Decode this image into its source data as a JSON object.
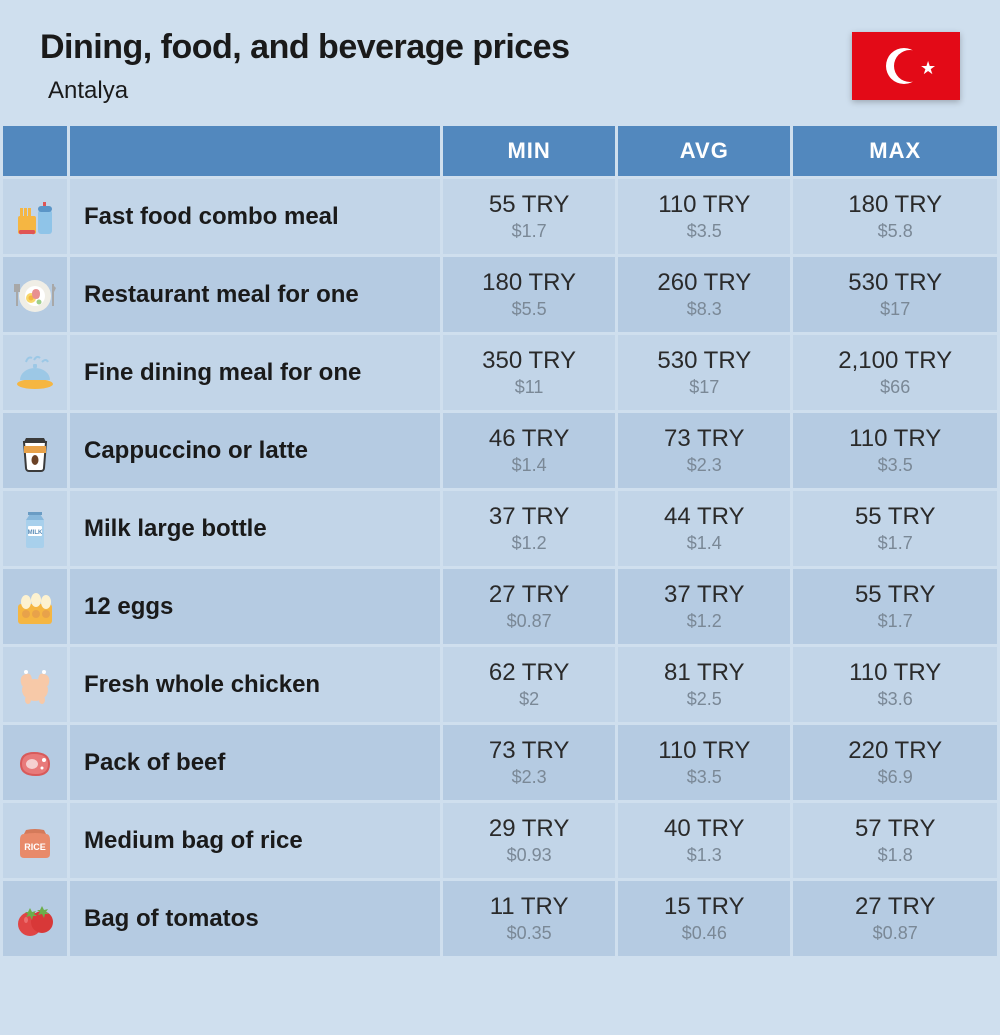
{
  "header": {
    "title": "Dining, food, and beverage prices",
    "location": "Antalya",
    "flag": {
      "bg": "#e30a17",
      "fg": "#ffffff"
    }
  },
  "columns": {
    "min": "MIN",
    "avg": "AVG",
    "max": "MAX"
  },
  "rows": [
    {
      "icon": "fastfood",
      "label": "Fast food combo meal",
      "min_p": "55 TRY",
      "min_s": "$1.7",
      "avg_p": "110 TRY",
      "avg_s": "$3.5",
      "max_p": "180 TRY",
      "max_s": "$5.8"
    },
    {
      "icon": "restaurant",
      "label": "Restaurant meal for one",
      "min_p": "180 TRY",
      "min_s": "$5.5",
      "avg_p": "260 TRY",
      "avg_s": "$8.3",
      "max_p": "530 TRY",
      "max_s": "$17"
    },
    {
      "icon": "finedining",
      "label": "Fine dining meal for one",
      "min_p": "350 TRY",
      "min_s": "$11",
      "avg_p": "530 TRY",
      "avg_s": "$17",
      "max_p": "2,100 TRY",
      "max_s": "$66"
    },
    {
      "icon": "coffee",
      "label": "Cappuccino or latte",
      "min_p": "46 TRY",
      "min_s": "$1.4",
      "avg_p": "73 TRY",
      "avg_s": "$2.3",
      "max_p": "110 TRY",
      "max_s": "$3.5"
    },
    {
      "icon": "milk",
      "label": "Milk large bottle",
      "min_p": "37 TRY",
      "min_s": "$1.2",
      "avg_p": "44 TRY",
      "avg_s": "$1.4",
      "max_p": "55 TRY",
      "max_s": "$1.7"
    },
    {
      "icon": "eggs",
      "label": "12 eggs",
      "min_p": "27 TRY",
      "min_s": "$0.87",
      "avg_p": "37 TRY",
      "avg_s": "$1.2",
      "max_p": "55 TRY",
      "max_s": "$1.7"
    },
    {
      "icon": "chicken",
      "label": "Fresh whole chicken",
      "min_p": "62 TRY",
      "min_s": "$2",
      "avg_p": "81 TRY",
      "avg_s": "$2.5",
      "max_p": "110 TRY",
      "max_s": "$3.6"
    },
    {
      "icon": "beef",
      "label": "Pack of beef",
      "min_p": "73 TRY",
      "min_s": "$2.3",
      "avg_p": "110 TRY",
      "avg_s": "$3.5",
      "max_p": "220 TRY",
      "max_s": "$6.9"
    },
    {
      "icon": "rice",
      "label": "Medium bag of rice",
      "min_p": "29 TRY",
      "min_s": "$0.93",
      "avg_p": "40 TRY",
      "avg_s": "$1.3",
      "max_p": "57 TRY",
      "max_s": "$1.8"
    },
    {
      "icon": "tomato",
      "label": "Bag of tomatos",
      "min_p": "11 TRY",
      "min_s": "$0.35",
      "avg_p": "15 TRY",
      "avg_s": "$0.46",
      "max_p": "27 TRY",
      "max_s": "$0.87"
    }
  ],
  "style": {
    "background": "#cfdfee",
    "row_alt_a": "#c2d5e8",
    "row_alt_b": "#b5cbe2",
    "header_bg": "#5288be",
    "header_fg": "#ffffff",
    "primary_text": "#2a2a2a",
    "secondary_text": "#7a8896",
    "title_fontsize": 34,
    "subtitle_fontsize": 24,
    "label_fontsize": 24,
    "primary_price_fontsize": 24,
    "secondary_price_fontsize": 18
  }
}
